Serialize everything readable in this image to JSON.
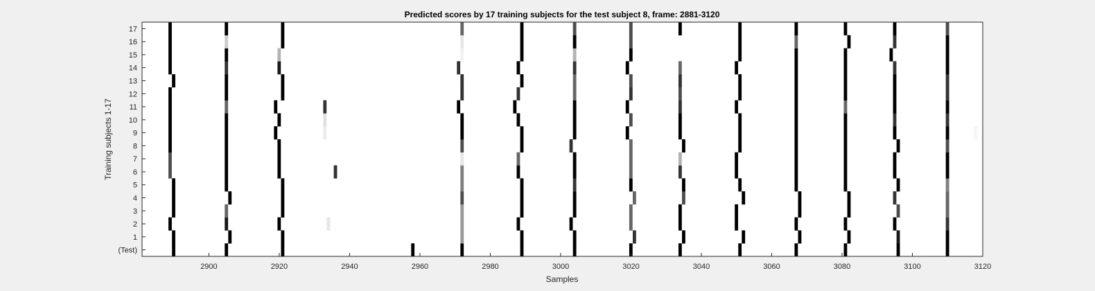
{
  "chart_data": {
    "type": "heatmap",
    "title": "Predicted scores by 17 training subjects for the test subject 8, frame: 2881-3120",
    "xlabel": "Samples",
    "ylabel": "Training subjects 1-17",
    "xlim": [
      2881,
      3120
    ],
    "xticks": [
      2900,
      2920,
      2940,
      2960,
      2980,
      3000,
      3020,
      3040,
      3060,
      3080,
      3100,
      3120
    ],
    "rows": [
      "(Test)",
      "1",
      "2",
      "3",
      "4",
      "5",
      "6",
      "7",
      "8",
      "9",
      "10",
      "11",
      "12",
      "13",
      "14",
      "15",
      "16",
      "17"
    ],
    "colormap": "white (0) to black (1)",
    "grid": false,
    "row_marks": [
      [
        [
          2890,
          1
        ],
        [
          2905,
          1
        ],
        [
          2921,
          1
        ],
        [
          2958,
          1
        ],
        [
          2972,
          1
        ],
        [
          2989,
          1
        ],
        [
          3004,
          1
        ],
        [
          3020,
          1
        ],
        [
          3034,
          1
        ],
        [
          3051,
          1
        ],
        [
          3067,
          1
        ],
        [
          3081,
          1
        ],
        [
          3096,
          1
        ],
        [
          3110,
          1
        ]
      ],
      [
        [
          2890,
          1
        ],
        [
          2906,
          1
        ],
        [
          2921,
          1
        ],
        [
          2972,
          0.4
        ],
        [
          2989,
          1
        ],
        [
          3004,
          1
        ],
        [
          3021,
          0.8
        ],
        [
          3035,
          1
        ],
        [
          3052,
          1
        ],
        [
          3068,
          1
        ],
        [
          3082,
          1
        ],
        [
          3096,
          0.9
        ],
        [
          3110,
          1
        ]
      ],
      [
        [
          2889,
          1
        ],
        [
          2905,
          0.9
        ],
        [
          2920,
          1
        ],
        [
          2934,
          0.1
        ],
        [
          2972,
          0.4
        ],
        [
          2988,
          1
        ],
        [
          3003,
          1
        ],
        [
          3020,
          0.6
        ],
        [
          3034,
          1
        ],
        [
          3050,
          1
        ],
        [
          3067,
          1
        ],
        [
          3081,
          1
        ],
        [
          3095,
          1
        ],
        [
          3110,
          0.8
        ]
      ],
      [
        [
          2890,
          1
        ],
        [
          2905,
          0.6
        ],
        [
          2921,
          1
        ],
        [
          2972,
          0.4
        ],
        [
          2989,
          1
        ],
        [
          3004,
          1
        ],
        [
          3020,
          0.6
        ],
        [
          3034,
          1
        ],
        [
          3050,
          1
        ],
        [
          3068,
          1
        ],
        [
          3082,
          1
        ],
        [
          3096,
          0.7
        ],
        [
          3110,
          0.6
        ]
      ],
      [
        [
          2890,
          1
        ],
        [
          2906,
          1
        ],
        [
          2921,
          1
        ],
        [
          2972,
          0.7
        ],
        [
          2989,
          1
        ],
        [
          3004,
          1
        ],
        [
          3021,
          0.6
        ],
        [
          3035,
          0.7
        ],
        [
          3052,
          1
        ],
        [
          3068,
          1
        ],
        [
          3082,
          1
        ],
        [
          3095,
          0.8
        ],
        [
          3110,
          0.6
        ]
      ],
      [
        [
          2890,
          1
        ],
        [
          2905,
          1
        ],
        [
          2921,
          1
        ],
        [
          2972,
          0.5
        ],
        [
          2989,
          1
        ],
        [
          3004,
          0.8
        ],
        [
          3020,
          1
        ],
        [
          3035,
          1
        ],
        [
          3051,
          1
        ],
        [
          3067,
          1
        ],
        [
          3081,
          1
        ],
        [
          3096,
          1
        ],
        [
          3110,
          0.5
        ]
      ],
      [
        [
          2889,
          0.7
        ],
        [
          2905,
          1
        ],
        [
          2920,
          1
        ],
        [
          2936,
          0.8
        ],
        [
          2972,
          0.5
        ],
        [
          2988,
          1
        ],
        [
          3004,
          1
        ],
        [
          3020,
          0.6
        ],
        [
          3034,
          0.8
        ],
        [
          3050,
          1
        ],
        [
          3067,
          1
        ],
        [
          3081,
          1
        ],
        [
          3095,
          1
        ],
        [
          3110,
          1
        ]
      ],
      [
        [
          2889,
          0.7
        ],
        [
          2905,
          1
        ],
        [
          2920,
          1
        ],
        [
          2972,
          0.1
        ],
        [
          2988,
          0.6
        ],
        [
          3004,
          1
        ],
        [
          3020,
          0.6
        ],
        [
          3034,
          0.3
        ],
        [
          3050,
          1
        ],
        [
          3067,
          1
        ],
        [
          3081,
          1
        ],
        [
          3095,
          1
        ],
        [
          3110,
          1
        ]
      ],
      [
        [
          2889,
          1
        ],
        [
          2905,
          1
        ],
        [
          2920,
          1
        ],
        [
          2972,
          0.7
        ],
        [
          2989,
          1
        ],
        [
          3003,
          0.8
        ],
        [
          3020,
          0.6
        ],
        [
          3035,
          1
        ],
        [
          3051,
          1
        ],
        [
          3067,
          1
        ],
        [
          3081,
          1
        ],
        [
          3096,
          1
        ],
        [
          3110,
          0.7
        ]
      ],
      [
        [
          2889,
          1
        ],
        [
          2905,
          1
        ],
        [
          2919,
          1
        ],
        [
          2933,
          0.08
        ],
        [
          2972,
          1
        ],
        [
          2989,
          1
        ],
        [
          3004,
          1
        ],
        [
          3019,
          1
        ],
        [
          3034,
          1
        ],
        [
          3051,
          1
        ],
        [
          3067,
          1
        ],
        [
          3081,
          1
        ],
        [
          3095,
          1
        ],
        [
          3110,
          1
        ],
        [
          3118,
          0.04
        ]
      ],
      [
        [
          2889,
          1
        ],
        [
          2905,
          1
        ],
        [
          2920,
          1
        ],
        [
          2933,
          0.12
        ],
        [
          2972,
          1
        ],
        [
          2988,
          1
        ],
        [
          3004,
          1
        ],
        [
          3020,
          0.7
        ],
        [
          3034,
          1
        ],
        [
          3051,
          1
        ],
        [
          3067,
          1
        ],
        [
          3081,
          1
        ],
        [
          3095,
          0.8
        ],
        [
          3110,
          0.8
        ]
      ],
      [
        [
          2889,
          1
        ],
        [
          2905,
          0.6
        ],
        [
          2919,
          1
        ],
        [
          2933,
          0.8
        ],
        [
          2971,
          1
        ],
        [
          2987,
          1
        ],
        [
          3004,
          1
        ],
        [
          3019,
          1
        ],
        [
          3034,
          0.8
        ],
        [
          3050,
          1
        ],
        [
          3067,
          1
        ],
        [
          3081,
          0.6
        ],
        [
          3095,
          1
        ],
        [
          3110,
          1
        ]
      ],
      [
        [
          2889,
          1
        ],
        [
          2905,
          1
        ],
        [
          2921,
          1
        ],
        [
          2972,
          0.8
        ],
        [
          2988,
          0.8
        ],
        [
          3004,
          0.6
        ],
        [
          3020,
          0.8
        ],
        [
          3034,
          0.7
        ],
        [
          3051,
          1
        ],
        [
          3067,
          1
        ],
        [
          3081,
          1
        ],
        [
          3095,
          1
        ],
        [
          3110,
          0.8
        ]
      ],
      [
        [
          2890,
          1
        ],
        [
          2905,
          1
        ],
        [
          2921,
          1
        ],
        [
          2972,
          0.8
        ],
        [
          2989,
          1
        ],
        [
          3004,
          0.6
        ],
        [
          3020,
          0.7
        ],
        [
          3034,
          0.8
        ],
        [
          3051,
          1
        ],
        [
          3067,
          1
        ],
        [
          3081,
          1
        ],
        [
          3095,
          1
        ],
        [
          3110,
          0.8
        ]
      ],
      [
        [
          2889,
          1
        ],
        [
          2905,
          0.8
        ],
        [
          2920,
          0.9
        ],
        [
          2971,
          0.8
        ],
        [
          2988,
          1
        ],
        [
          3004,
          0.8
        ],
        [
          3019,
          1
        ],
        [
          3034,
          0.6
        ],
        [
          3050,
          1
        ],
        [
          3067,
          1
        ],
        [
          3081,
          1
        ],
        [
          3095,
          0.8
        ],
        [
          3110,
          1
        ]
      ],
      [
        [
          2889,
          1
        ],
        [
          2905,
          1
        ],
        [
          2920,
          0.3
        ],
        [
          2972,
          0.05
        ],
        [
          2989,
          1
        ],
        [
          3004,
          0.3
        ],
        [
          3020,
          1
        ],
        [
          3051,
          1
        ],
        [
          3067,
          1
        ],
        [
          3081,
          1
        ],
        [
          3094,
          1
        ],
        [
          3110,
          1
        ]
      ],
      [
        [
          2889,
          1
        ],
        [
          2905,
          0.2
        ],
        [
          2921,
          1
        ],
        [
          2972,
          0.1
        ],
        [
          2989,
          1
        ],
        [
          3004,
          1
        ],
        [
          3020,
          0.7
        ],
        [
          3051,
          1
        ],
        [
          3067,
          0.6
        ],
        [
          3082,
          1
        ],
        [
          3095,
          0.8
        ],
        [
          3110,
          1
        ]
      ],
      [
        [
          2889,
          1
        ],
        [
          2905,
          1
        ],
        [
          2921,
          1
        ],
        [
          2972,
          0.6
        ],
        [
          2989,
          1
        ],
        [
          3004,
          0.7
        ],
        [
          3020,
          0.7
        ],
        [
          3034,
          1
        ],
        [
          3051,
          1
        ],
        [
          3067,
          1
        ],
        [
          3081,
          1
        ],
        [
          3095,
          1
        ],
        [
          3110,
          0.7
        ]
      ]
    ]
  }
}
